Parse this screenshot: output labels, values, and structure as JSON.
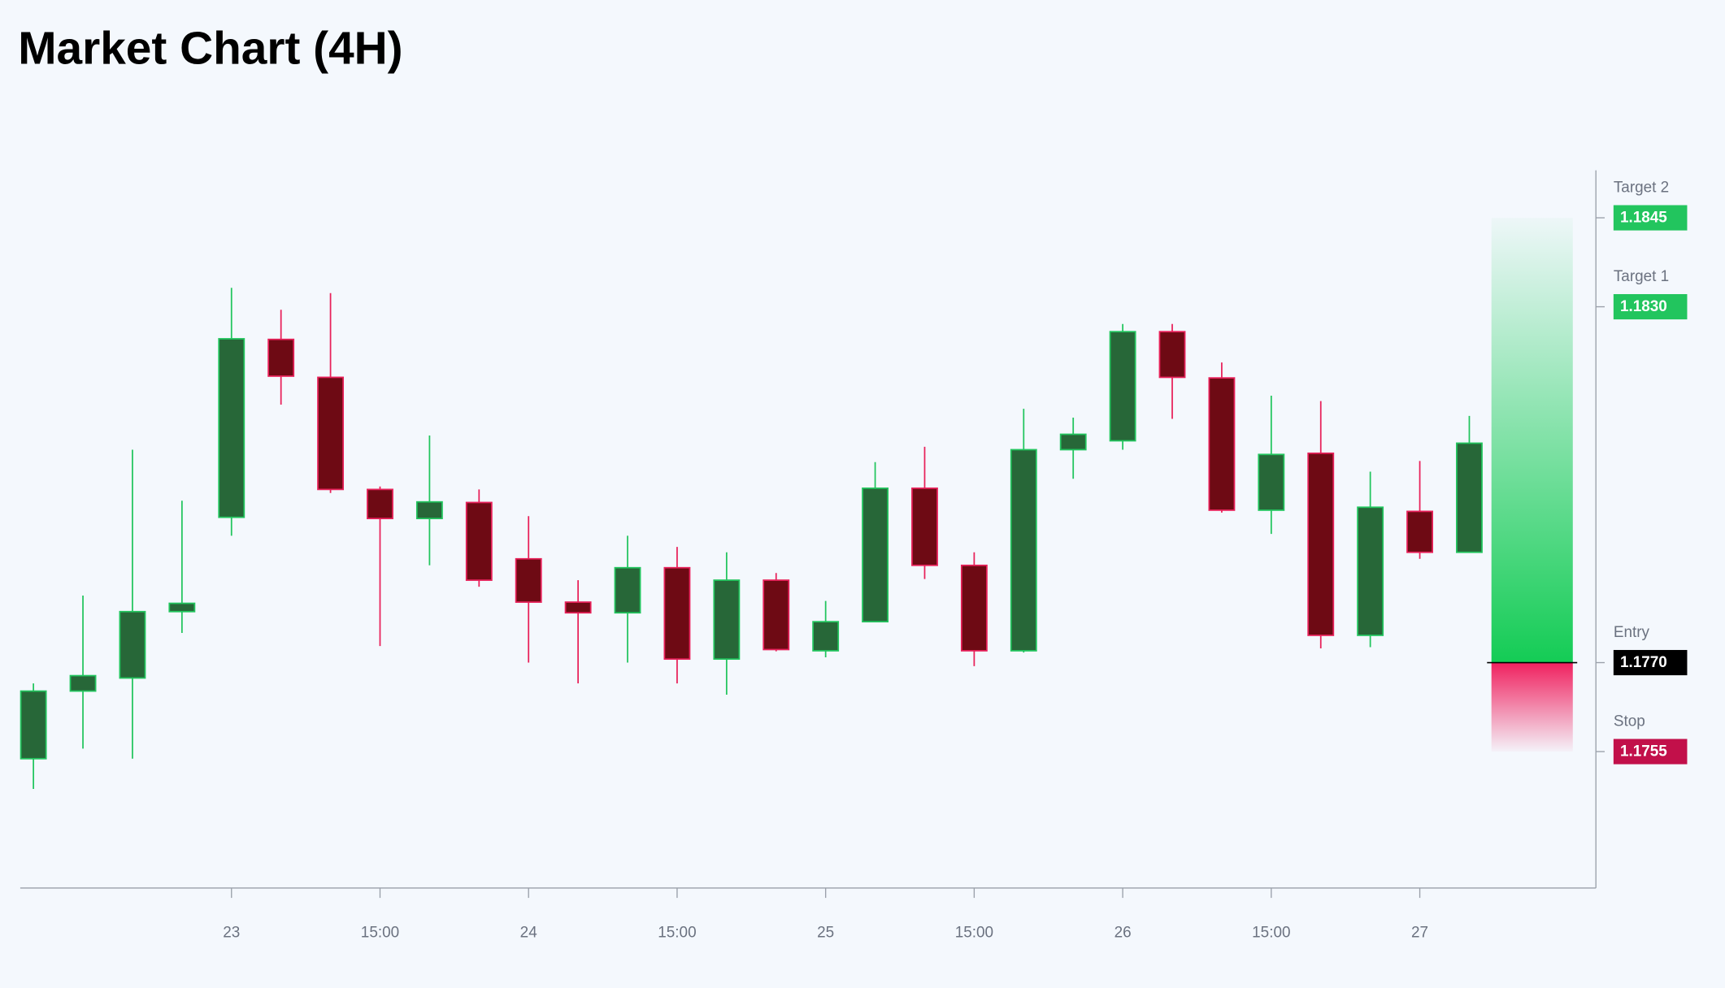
{
  "chart_data": {
    "type": "candlestick",
    "title": "Market Chart (4H)",
    "categories": [
      null,
      null,
      null,
      null,
      "23",
      null,
      null,
      "15:00",
      null,
      null,
      "24",
      null,
      null,
      "15:00",
      null,
      null,
      "25",
      null,
      null,
      "15:00",
      null,
      null,
      "26",
      null,
      null,
      "15:00",
      null,
      null,
      "27",
      null
    ],
    "open": [
      1.17538,
      1.17652,
      1.17674,
      1.17786,
      1.17945,
      1.18245,
      1.18181,
      1.17992,
      1.17943,
      1.1797,
      1.17875,
      1.17802,
      1.17784,
      1.1786,
      1.17706,
      1.17839,
      1.1772,
      1.17769,
      1.17994,
      1.17864,
      1.1772,
      1.18059,
      1.18074,
      1.18258,
      1.1818,
      1.17957,
      1.18053,
      1.17746,
      1.17955,
      1.17886
    ],
    "high": [
      1.17665,
      1.17813,
      1.18059,
      1.17973,
      1.18332,
      1.18295,
      1.18323,
      1.17997,
      1.18083,
      1.17992,
      1.17947,
      1.17839,
      1.17914,
      1.17895,
      1.17886,
      1.17851,
      1.17804,
      1.18038,
      1.18064,
      1.17886,
      1.18128,
      1.18113,
      1.18271,
      1.18271,
      1.18206,
      1.1815,
      1.18141,
      1.18022,
      1.1804,
      1.18116
    ],
    "low": [
      1.17487,
      1.17555,
      1.17538,
      1.1775,
      1.17914,
      1.18135,
      1.17986,
      1.17728,
      1.17864,
      1.17828,
      1.177,
      1.17665,
      1.177,
      1.17665,
      1.17646,
      1.17719,
      1.17709,
      1.17769,
      1.17841,
      1.17694,
      1.17717,
      1.1801,
      1.18059,
      1.18111,
      1.17953,
      1.17917,
      1.17724,
      1.17726,
      1.17875,
      1.17886
    ],
    "close": [
      1.17652,
      1.17678,
      1.17786,
      1.178,
      1.18246,
      1.18183,
      1.17992,
      1.17943,
      1.17971,
      1.17839,
      1.17802,
      1.17784,
      1.1786,
      1.17706,
      1.17839,
      1.17722,
      1.17769,
      1.17994,
      1.17864,
      1.1772,
      1.18059,
      1.18085,
      1.18258,
      1.18181,
      1.17957,
      1.18051,
      1.17746,
      1.17962,
      1.17886,
      1.1807
    ],
    "up_color": "#22c55e",
    "up_fill": "#276738",
    "down_color": "#e8215a",
    "down_fill": "#6e0a14",
    "ylim": [
      1.1732,
      1.1853
    ],
    "levels": [
      {
        "name": "Target 2",
        "value": 1.1845,
        "label": "1.1845",
        "color": "#22c55e"
      },
      {
        "name": "Target 1",
        "value": 1.183,
        "label": "1.1830",
        "color": "#22c55e"
      },
      {
        "name": "Entry",
        "value": 1.177,
        "label": "1.1770",
        "color": "#000000"
      },
      {
        "name": "Stop",
        "value": 1.1755,
        "label": "1.1755",
        "color": "#c2104a"
      }
    ]
  }
}
